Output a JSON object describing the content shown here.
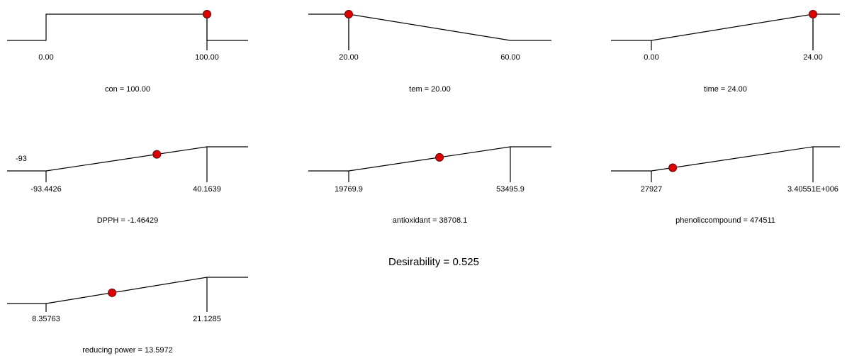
{
  "chart_data": {
    "type": "line",
    "desirability": {
      "label": "Desirability = 0.525",
      "value": 0.525
    },
    "panels": [
      {
        "id": "con",
        "kind": "factor",
        "shape": "step",
        "title": "con = 100.00",
        "low_label": "0.00",
        "high_label": "100.00",
        "low": 0,
        "high": 100,
        "current": 100,
        "d_at_current": 1
      },
      {
        "id": "tem",
        "kind": "factor",
        "shape": "falling",
        "title": "tem = 20.00",
        "low_label": "20.00",
        "high_label": "60.00",
        "low": 20,
        "high": 60,
        "current": 20,
        "d_at_current": 1
      },
      {
        "id": "time",
        "kind": "factor",
        "shape": "rising",
        "title": "time = 24.00",
        "low_label": "0.00",
        "high_label": "24.00",
        "low": 0,
        "high": 24,
        "current": 24,
        "d_at_current": 1
      },
      {
        "id": "dpph",
        "kind": "response",
        "shape": "rising",
        "title": "DPPH = -1.46429",
        "low_label": "-93.4426",
        "high_label": "40.1639",
        "extra_label": "-93",
        "low": -93.4426,
        "high": 40.1639,
        "current": -1.46429,
        "d_at_current": 0.69
      },
      {
        "id": "antioxidant",
        "kind": "response",
        "shape": "rising",
        "title": "antioxidant = 38708.1",
        "low_label": "19769.9",
        "high_label": "53495.9",
        "low": 19769.9,
        "high": 53495.9,
        "current": 38708.1,
        "d_at_current": 0.56
      },
      {
        "id": "phenoliccompound",
        "kind": "response",
        "shape": "rising",
        "title": "phenoliccompound = 474511",
        "low_label": "27927",
        "high_label": "3.40551E+006",
        "low": 27927,
        "high": 3405510,
        "current": 474511,
        "d_at_current": 0.13
      },
      {
        "id": "reducing-power",
        "kind": "response",
        "shape": "rising",
        "title": "reducing power = 13.5972",
        "low_label": "8.35763",
        "high_label": "21.1285",
        "low": 8.35763,
        "high": 21.1285,
        "current": 13.5972,
        "d_at_current": 0.41
      }
    ],
    "colors": {
      "line": "#000000",
      "marker": "#e00000",
      "marker_edge": "#600000"
    }
  }
}
